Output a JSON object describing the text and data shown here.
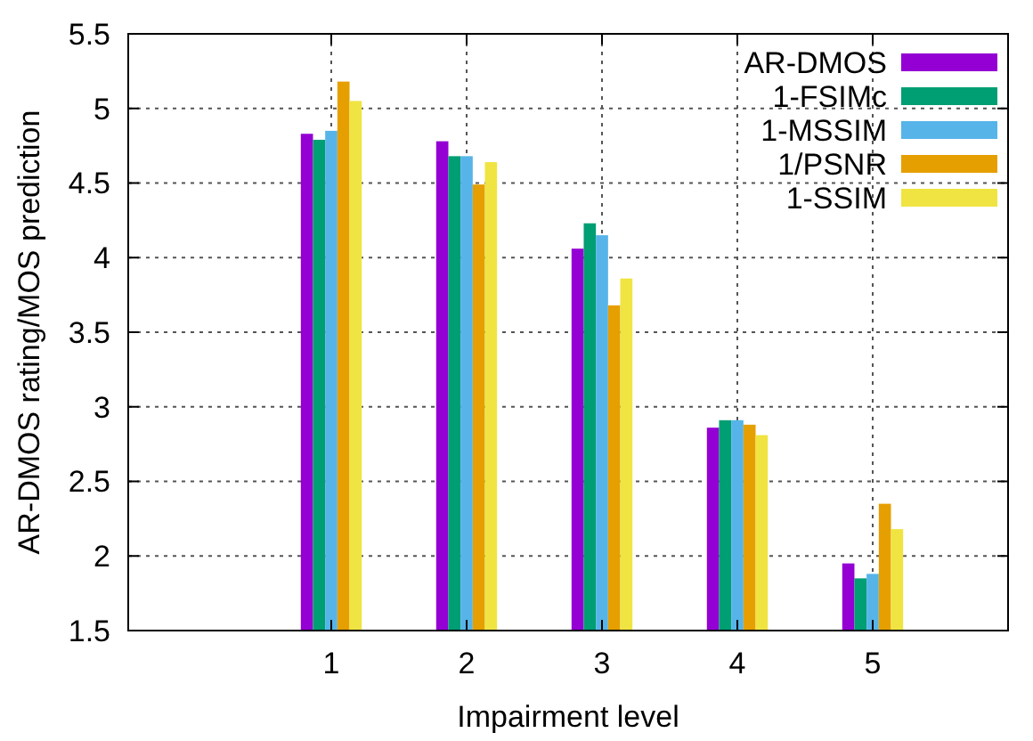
{
  "chart_data": {
    "type": "bar",
    "xlabel": "Impairment level",
    "ylabel": "AR-DMOS rating/MOS prediction",
    "x": [
      1,
      2,
      3,
      4,
      5
    ],
    "xlim": [
      -0.5,
      6
    ],
    "xticks": [
      1,
      2,
      3,
      4,
      5
    ],
    "ylim": [
      1.5,
      5.5
    ],
    "yticks": [
      1.5,
      2,
      2.5,
      3,
      3.5,
      4,
      4.5,
      5,
      5.5
    ],
    "grid": true,
    "legend": "top right",
    "series": [
      {
        "name": "AR-DMOS",
        "color": "#9400d3",
        "values": [
          4.83,
          4.78,
          4.06,
          2.86,
          1.95
        ]
      },
      {
        "name": "1-FSIMc",
        "color": "#009e73",
        "values": [
          4.79,
          4.68,
          4.23,
          2.91,
          1.85
        ]
      },
      {
        "name": "1-MSSIM",
        "color": "#56b4e9",
        "values": [
          4.85,
          4.68,
          4.15,
          2.91,
          1.88
        ]
      },
      {
        "name": "1/PSNR",
        "color": "#e69f00",
        "values": [
          5.18,
          4.49,
          3.68,
          2.88,
          2.35
        ]
      },
      {
        "name": "1-SSIM",
        "color": "#f0e442",
        "values": [
          5.05,
          4.64,
          3.86,
          2.81,
          2.18
        ]
      }
    ]
  }
}
